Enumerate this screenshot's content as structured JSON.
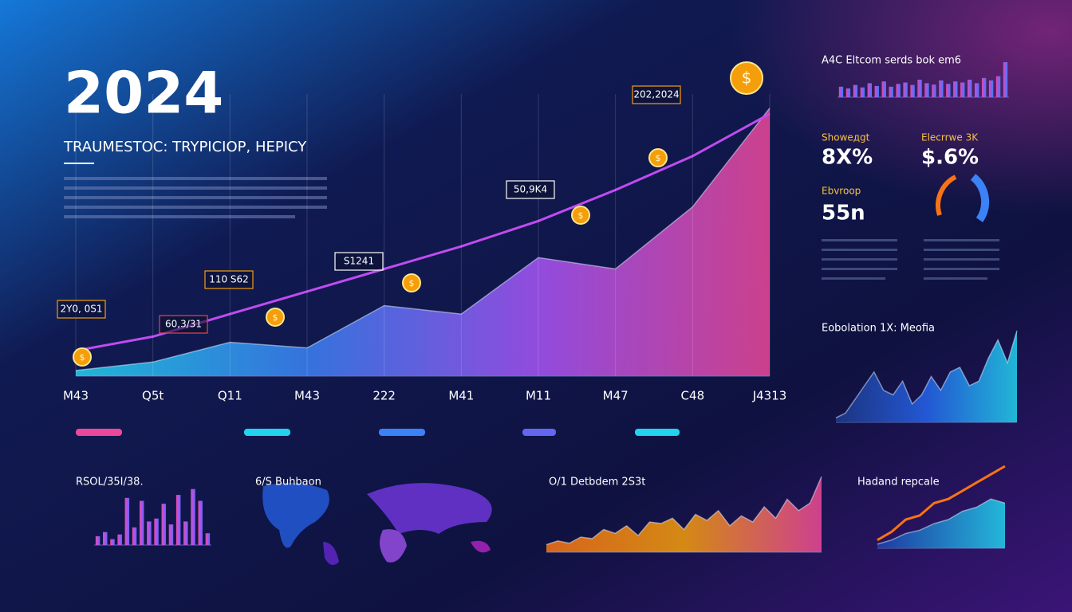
{
  "heading": "2024",
  "subheading": "TRAUMESTOC: TRYPICIOP, HEPICY",
  "kpis": [
    {
      "label": "Showeдgt",
      "value": "8X%"
    },
    {
      "label": "Elecrrwe 3K",
      "value": "$.6%"
    },
    {
      "label": "Ebvroop",
      "value": "55n"
    }
  ],
  "map": {
    "title": "6/S Buhbaon"
  },
  "chart_data": [
    {
      "type": "area",
      "categories": [
        "M43",
        "Q5t",
        "Q11",
        "M43",
        "222",
        "M41",
        "M11",
        "M47",
        "C48",
        "J4313"
      ],
      "ylim": [
        0,
        100
      ],
      "series": [
        {
          "type": "area",
          "gradient": [
            "#22d3ee",
            "#3b82f6",
            "#a855f7",
            "#ec4899"
          ],
          "values": [
            2,
            5,
            12,
            10,
            25,
            22,
            42,
            38,
            60,
            95
          ]
        },
        {
          "type": "line",
          "color": "#c04bf0",
          "values": [
            9,
            14,
            22,
            30,
            38,
            46,
            55,
            66,
            78,
            93
          ]
        }
      ],
      "annotations": [
        "2Y0, 0S1",
        "60,3/31",
        "110 S62",
        "S1241",
        "50,9K4",
        "202,2024"
      ]
    },
    {
      "type": "bar",
      "title": "A4C Eltcom serds bok em6",
      "ylim": [
        0,
        100
      ],
      "gradient": [
        "#ec4899",
        "#8b5cf6",
        "#3b82f6"
      ],
      "values": [
        30,
        25,
        35,
        28,
        40,
        32,
        45,
        30,
        38,
        42,
        35,
        50,
        40,
        36,
        48,
        38,
        45,
        42,
        50,
        40,
        55,
        48,
        60,
        100
      ]
    },
    {
      "type": "area",
      "title": "Eobolation 1X: Meofia",
      "ylim": [
        0,
        100
      ],
      "series": [
        {
          "type": "area",
          "gradient": [
            "#1e3a8a",
            "#2563eb",
            "#22d3ee"
          ],
          "values": [
            5,
            10,
            25,
            40,
            55,
            35,
            30,
            45,
            20,
            30,
            50,
            35,
            55,
            60,
            40,
            45,
            70,
            90,
            65,
            100
          ]
        }
      ]
    },
    {
      "type": "bar",
      "title": "RSOL/35I/38.",
      "ylim": [
        0,
        100
      ],
      "gradient": [
        "#ec4899",
        "#a855f7",
        "#6366f1"
      ],
      "values": [
        15,
        22,
        10,
        18,
        80,
        30,
        75,
        40,
        45,
        70,
        35,
        85,
        40,
        95,
        75,
        20
      ]
    },
    {
      "type": "area",
      "title": "O/1 Detbdem 2S3t",
      "ylim": [
        0,
        100
      ],
      "series": [
        {
          "type": "area",
          "gradient": [
            "#f97316",
            "#f59e0b",
            "#ec4899"
          ],
          "values": [
            10,
            15,
            12,
            20,
            18,
            30,
            25,
            35,
            22,
            40,
            38,
            45,
            30,
            50,
            42,
            55,
            35,
            48,
            40,
            60,
            45,
            70,
            55,
            65,
            100
          ]
        }
      ]
    },
    {
      "type": "line",
      "title": "Hadand repcale",
      "ylim": [
        0,
        100
      ],
      "series": [
        {
          "type": "area",
          "gradient": [
            "#1e40af",
            "#22d3ee"
          ],
          "values": [
            5,
            10,
            18,
            22,
            30,
            35,
            45,
            50,
            60,
            55
          ]
        },
        {
          "type": "line",
          "color": "#f97316",
          "values": [
            10,
            20,
            35,
            40,
            55,
            60,
            70,
            80,
            90,
            100
          ]
        }
      ]
    }
  ]
}
